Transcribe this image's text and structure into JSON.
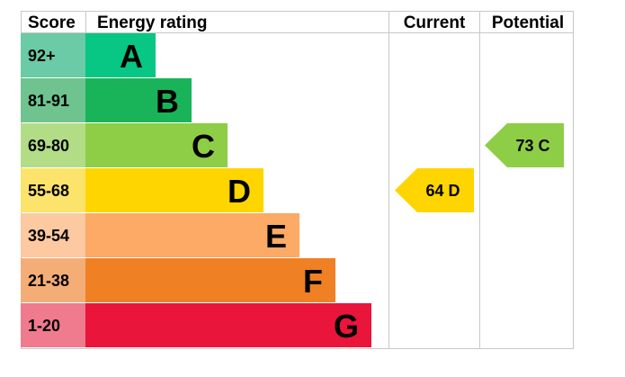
{
  "headers": {
    "score": "Score",
    "rating": "Energy rating",
    "current": "Current",
    "potential": "Potential"
  },
  "chart_data": {
    "type": "bar",
    "title": "",
    "categories": [
      "92+",
      "81-91",
      "69-80",
      "55-68",
      "39-54",
      "21-38",
      "1-20"
    ],
    "letters": [
      "A",
      "B",
      "C",
      "D",
      "E",
      "F",
      "G"
    ],
    "bar_colors": [
      "#08c683",
      "#19b459",
      "#8dce46",
      "#ffd500",
      "#fcaa65",
      "#ef8023",
      "#e9153b"
    ],
    "score_colors": [
      "#6acba6",
      "#6fc38f",
      "#b2dd86",
      "#fce36b",
      "#fcc9a0",
      "#f4ad77",
      "#f07a8e"
    ],
    "current": {
      "value": 64,
      "band": "D",
      "label": "64  D",
      "color": "#ffd500"
    },
    "potential": {
      "value": 73,
      "band": "C",
      "label": "73  C",
      "color": "#8dce46"
    }
  }
}
